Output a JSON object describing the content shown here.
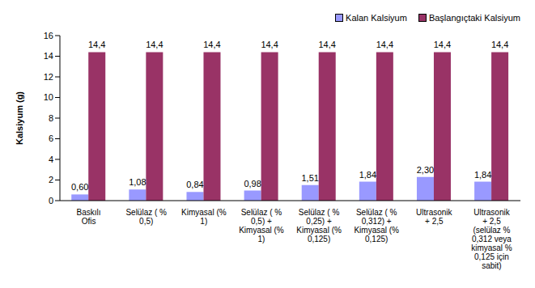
{
  "chart_data": {
    "type": "bar",
    "y_label": "Kalsiyum (g)",
    "categories": [
      "Baskılı Ofis",
      "Selülaz ( % 0,5)",
      "Kimyasal (% 1)",
      "Selülaz ( % 0,5) + Kimyasal (% 1)",
      "Selülaz ( % 0,25) + Kimyasal (% 0,125)",
      "Selülaz ( % 0,312) + Kimyasal (% 0,125)",
      "Ultrasonik + 2,5",
      "Ultrasonik + 2,5 (selülaz % 0,312 veya kimyasal % 0,125 için sabit)"
    ],
    "series": [
      {
        "name": "Kalan Kalsiyum",
        "color": "#9999ff",
        "values": [
          0.6,
          1.08,
          0.84,
          0.98,
          1.51,
          1.84,
          2.3,
          1.84
        ],
        "value_labels": [
          "0,60",
          "1,08",
          "0,84",
          "0,98",
          "1,51",
          "1,84",
          "2,30",
          "1,84"
        ]
      },
      {
        "name": "Başlangıçtaki Kalsiyum",
        "color": "#993366",
        "values": [
          14.4,
          14.4,
          14.4,
          14.4,
          14.4,
          14.4,
          14.4,
          14.4
        ],
        "value_labels": [
          "14,4",
          "14,4",
          "14,4",
          "14,4",
          "14,4",
          "14,4",
          "14,4",
          "14,4"
        ]
      }
    ],
    "ylim": [
      0,
      16
    ],
    "yticks": [
      0,
      2,
      4,
      6,
      8,
      10,
      12,
      14,
      16
    ],
    "grid": false,
    "legend": "top-right",
    "data_labels": true
  }
}
